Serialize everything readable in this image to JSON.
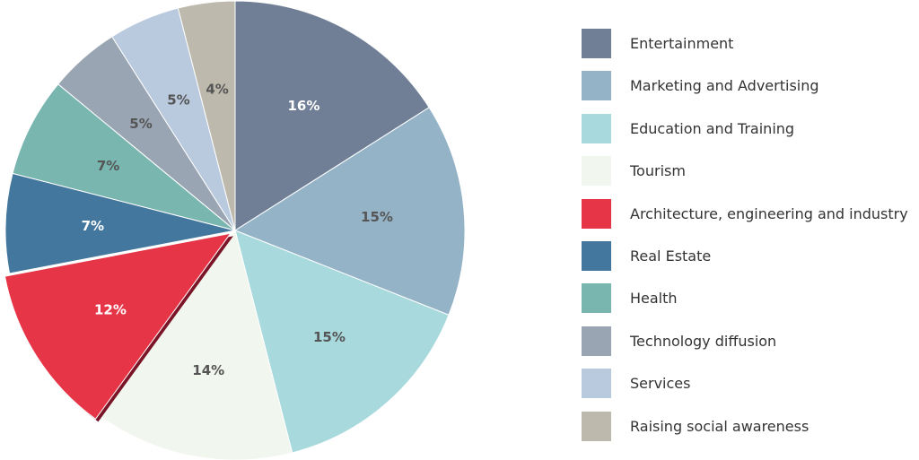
{
  "chart_data": {
    "type": "pie",
    "title": "",
    "slices": [
      {
        "label": "Entertainment",
        "value": 16,
        "display": "16%",
        "color": "#707f96",
        "label_color": "#ffffff"
      },
      {
        "label": "Marketing and Advertising",
        "value": 15,
        "display": "15%",
        "color": "#94b3c7",
        "label_color": "#555555"
      },
      {
        "label": "Education and Training",
        "value": 15,
        "display": "15%",
        "color": "#a8d9dd",
        "label_color": "#555555"
      },
      {
        "label": "Tourism",
        "value": 14,
        "display": "14%",
        "color": "#f1f6ee",
        "label_color": "#555555"
      },
      {
        "label": "Architecture, engineering and industry",
        "value": 12,
        "display": "12%",
        "color": "#e63547",
        "label_color": "#ffffff",
        "exploded": true
      },
      {
        "label": "Real Estate",
        "value": 7,
        "display": "7%",
        "color": "#43779e",
        "label_color": "#ffffff"
      },
      {
        "label": "Health",
        "value": 7,
        "display": "7%",
        "color": "#79b6b0",
        "label_color": "#555555"
      },
      {
        "label": "Technology diffusion",
        "value": 5,
        "display": "5%",
        "color": "#9aa5b3",
        "label_color": "#555555"
      },
      {
        "label": "Services",
        "value": 5,
        "display": "5%",
        "color": "#b9c9de",
        "label_color": "#555555"
      },
      {
        "label": "Raising social awareness",
        "value": 4,
        "display": "4%",
        "color": "#bdb9ad",
        "label_color": "#555555"
      }
    ],
    "legend_position": "right"
  }
}
